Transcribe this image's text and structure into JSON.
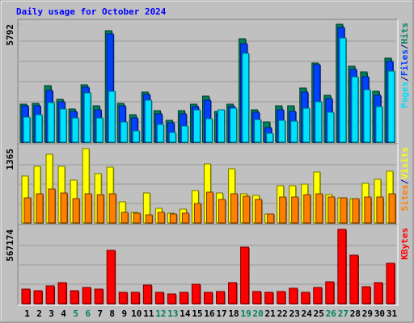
{
  "title": "Daily usage for October 2024",
  "chart_data": [
    {
      "type": "bar",
      "ylim": [
        0,
        5792
      ],
      "yticks": [
        5792
      ],
      "legend_separator": "/",
      "series": [
        {
          "name": "Hits",
          "color": "#00805c",
          "values": [
            1865,
            1904,
            2777,
            2103,
            1627,
            2817,
            1785,
            5475,
            1904,
            1349,
            2460,
            1547,
            1071,
            1547,
            1865,
            2261,
            1508,
            1865,
            5078,
            1587,
            992,
            1785,
            1785,
            2658,
            3888,
            2301,
            5792,
            3729,
            3451,
            2499,
            4126
          ]
        },
        {
          "name": "Files",
          "color": "#0040ff",
          "values": [
            1785,
            1785,
            2539,
            1984,
            1508,
            2698,
            1587,
            5316,
            1785,
            1190,
            2341,
            1388,
            952,
            1388,
            1745,
            2063,
            1388,
            1745,
            4840,
            1468,
            714,
            1587,
            1508,
            2460,
            3808,
            2142,
            5633,
            3570,
            3213,
            2301,
            3967
          ]
        },
        {
          "name": "Pages",
          "color": "#00e0ff",
          "values": [
            1230,
            1349,
            1944,
            1627,
            1190,
            2420,
            1190,
            2499,
            992,
            555,
            2063,
            873,
            476,
            793,
            1587,
            1150,
            1587,
            1666,
            4364,
            1111,
            436,
            1071,
            1031,
            1666,
            1984,
            1468,
            5117,
            3213,
            2579,
            1745,
            3491
          ]
        }
      ]
    },
    {
      "type": "bar",
      "ylim": [
        0,
        1365
      ],
      "yticks": [
        1365
      ],
      "legend_separator": "/",
      "series": [
        {
          "name": "Visits",
          "color": "#ffff00",
          "values": [
            861,
            1039,
            1261,
            1039,
            786,
            1365,
            905,
            1024,
            386,
            193,
            549,
            267,
            178,
            252,
            594,
            1083,
            549,
            994,
            534,
            505,
            163,
            683,
            683,
            712,
            935,
            519,
            460,
            445,
            727,
            801,
            950
          ]
        },
        {
          "name": "Sites",
          "color": "#ff8000",
          "values": [
            460,
            534,
            623,
            549,
            445,
            534,
            519,
            534,
            193,
            178,
            148,
            193,
            163,
            178,
            356,
            564,
            430,
            534,
            490,
            430,
            163,
            475,
            475,
            519,
            534,
            475,
            460,
            445,
            475,
            475,
            534
          ]
        }
      ]
    },
    {
      "type": "bar",
      "ylim": [
        0,
        567174
      ],
      "yticks": [
        567174
      ],
      "categories": [
        "1",
        "2",
        "3",
        "4",
        "5",
        "6",
        "7",
        "8",
        "9",
        "10",
        "11",
        "12",
        "13",
        "14",
        "15",
        "16",
        "17",
        "18",
        "19",
        "20",
        "21",
        "22",
        "23",
        "24",
        "25",
        "26",
        "27",
        "28",
        "29",
        "30",
        "31"
      ],
      "category_colors": [
        "#000000",
        "#000000",
        "#000000",
        "#000000",
        "#00805c",
        "#00805c",
        "#000000",
        "#000000",
        "#000000",
        "#000000",
        "#000000",
        "#00805c",
        "#00805c",
        "#000000",
        "#000000",
        "#000000",
        "#000000",
        "#000000",
        "#00805c",
        "#00805c",
        "#000000",
        "#000000",
        "#000000",
        "#000000",
        "#000000",
        "#00805c",
        "#00805c",
        "#000000",
        "#000000",
        "#000000",
        "#000000"
      ],
      "series": [
        {
          "name": "KBytes",
          "color": "#ff0000",
          "values": [
            110970,
            98640,
            135630,
            160290,
            98640,
            123300,
            110970,
            406890,
            86310,
            86310,
            141795,
            86310,
            73980,
            86310,
            147960,
            86310,
            92475,
            160290,
            431550,
            92475,
            86310,
            92475,
            117135,
            86310,
            123300,
            166455,
            567174,
            369900,
            129465,
            160290,
            308250
          ]
        }
      ]
    }
  ]
}
